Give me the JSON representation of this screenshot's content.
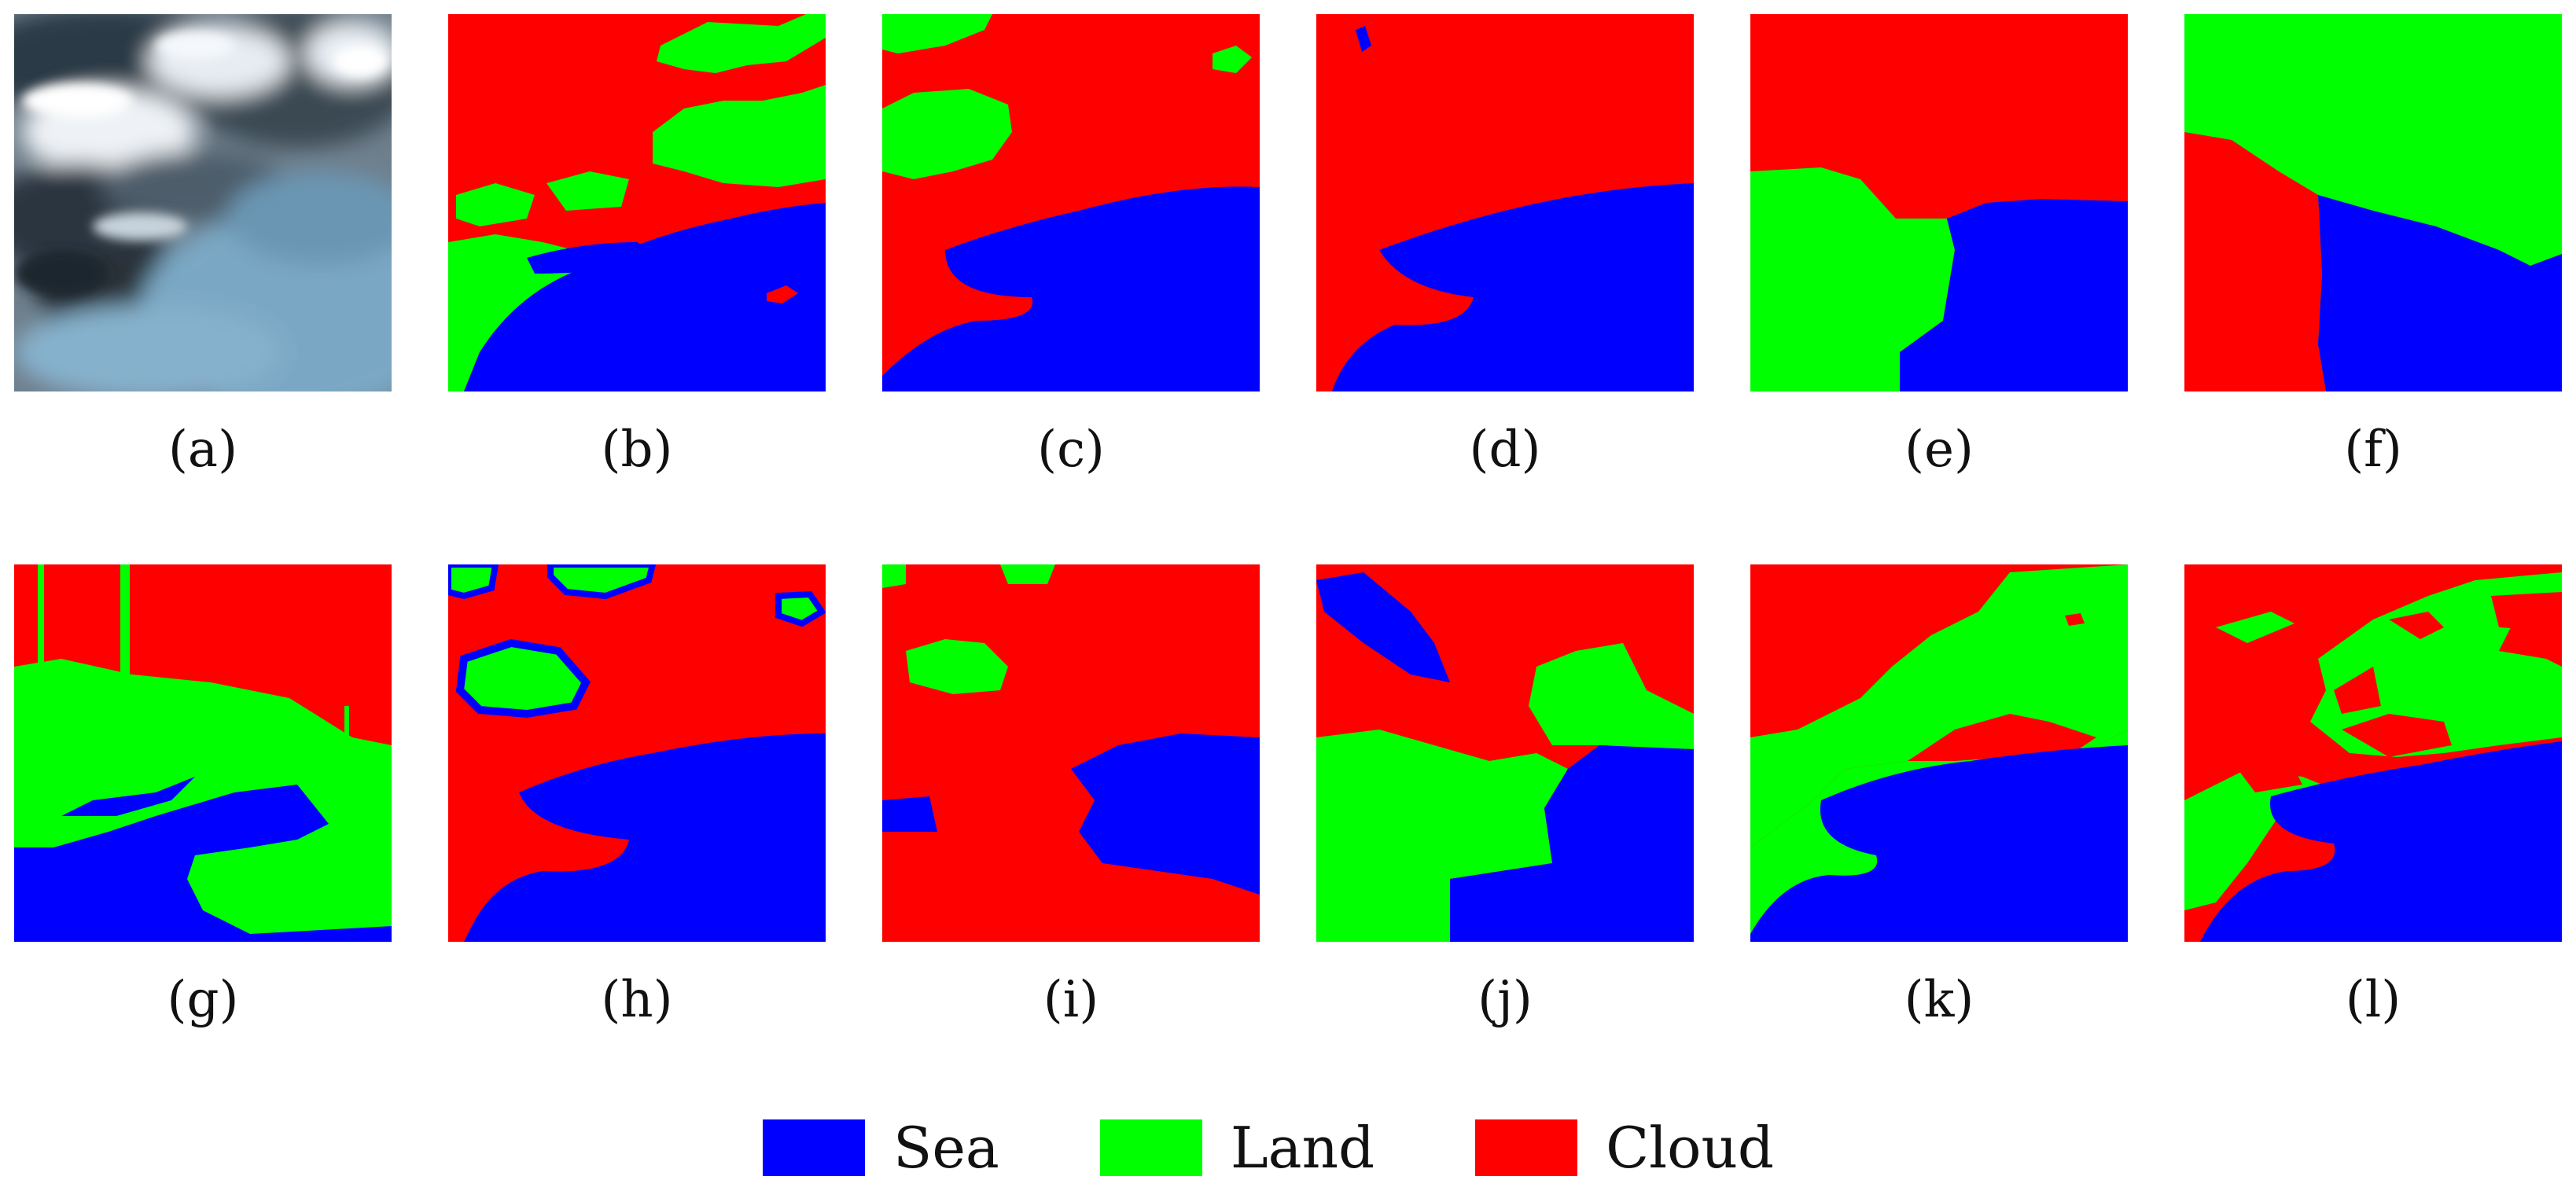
{
  "colors": {
    "sea": "#0000ff",
    "land": "#00ff00",
    "cloud": "#ff0000"
  },
  "panels": [
    {
      "label": "(a)",
      "kind": "satellite-photo"
    },
    {
      "label": "(b)",
      "kind": "segmentation-map"
    },
    {
      "label": "(c)",
      "kind": "segmentation-map"
    },
    {
      "label": "(d)",
      "kind": "segmentation-map"
    },
    {
      "label": "(e)",
      "kind": "segmentation-map"
    },
    {
      "label": "(f)",
      "kind": "segmentation-map"
    },
    {
      "label": "(g)",
      "kind": "segmentation-map"
    },
    {
      "label": "(h)",
      "kind": "segmentation-map"
    },
    {
      "label": "(i)",
      "kind": "segmentation-map"
    },
    {
      "label": "(j)",
      "kind": "segmentation-map"
    },
    {
      "label": "(k)",
      "kind": "segmentation-map"
    },
    {
      "label": "(l)",
      "kind": "segmentation-map"
    }
  ],
  "legend": [
    {
      "label": "Sea",
      "color": "#0000ff"
    },
    {
      "label": "Land",
      "color": "#00ff00"
    },
    {
      "label": "Cloud",
      "color": "#ff0000"
    }
  ]
}
